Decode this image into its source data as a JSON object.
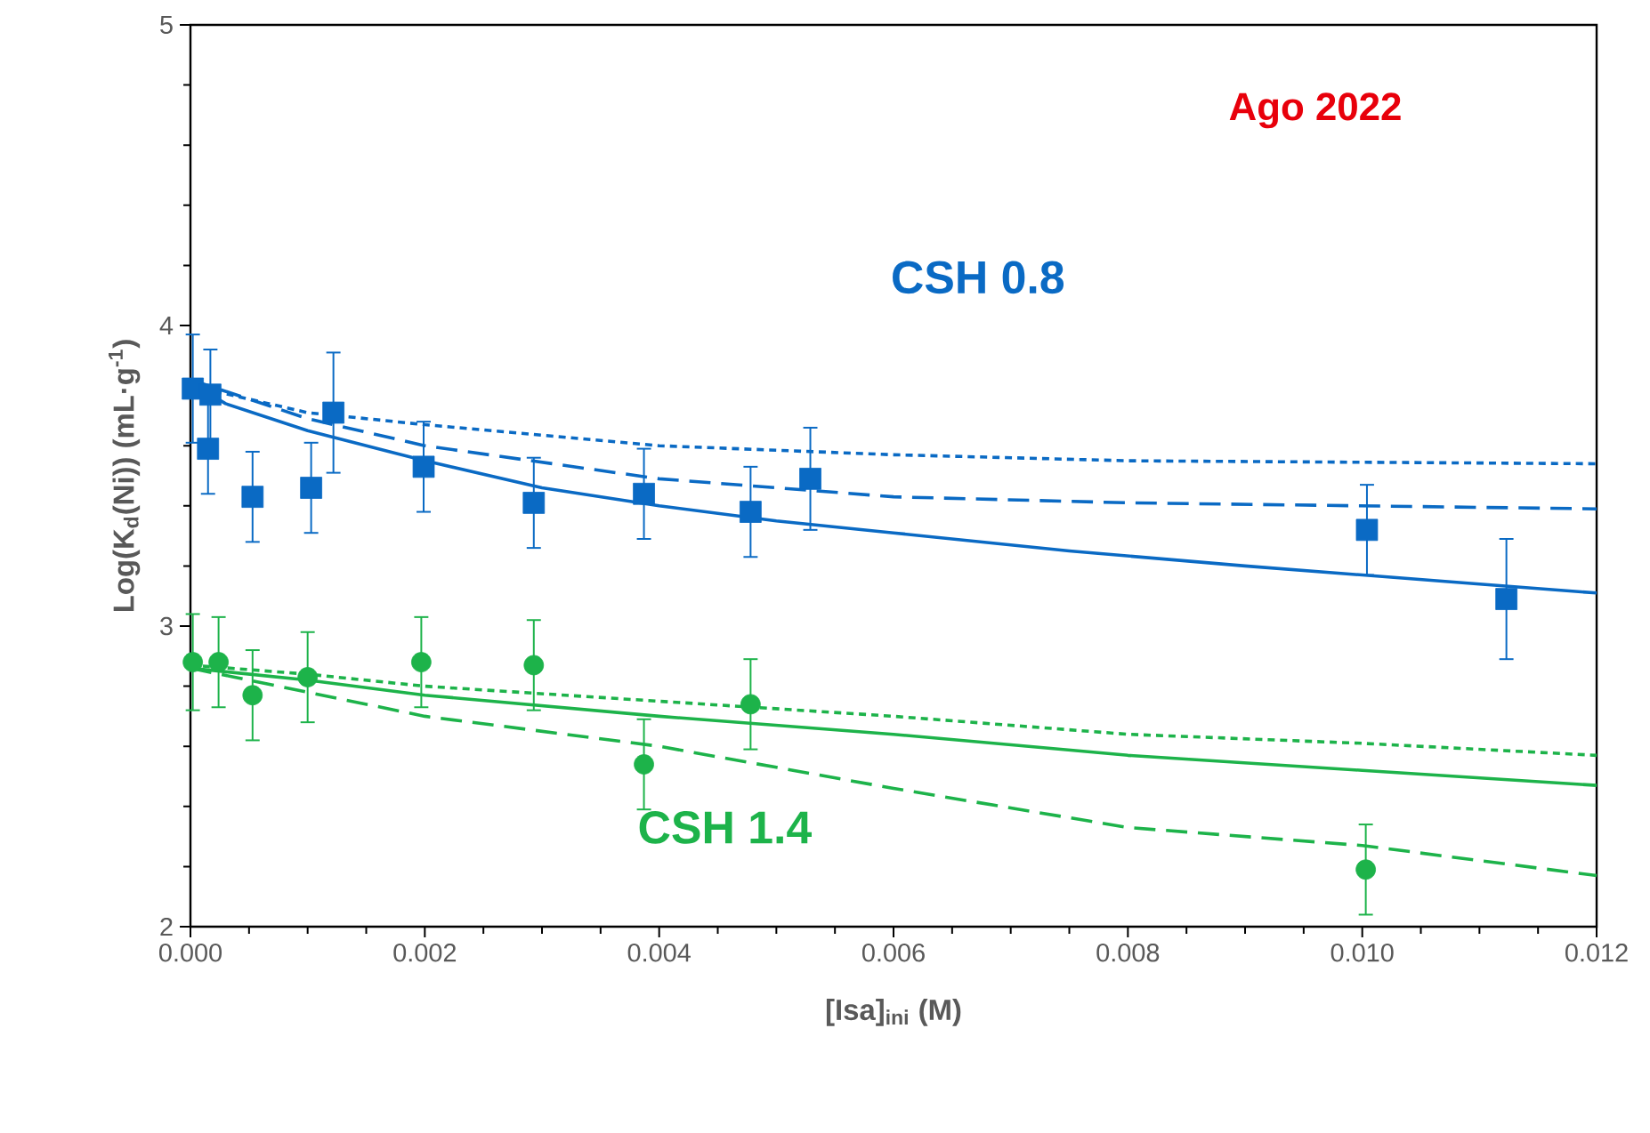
{
  "chart_data": {
    "type": "scatter",
    "xlabel": "[Isa]$_{ini}$ (M)",
    "ylabel": "Log(K$_{d}$(Ni)) (mL·g$^{-1}$)",
    "annotations": [
      "Ago 2022"
    ],
    "xlim": [
      0,
      0.012
    ],
    "ylim": [
      2,
      5
    ],
    "xticks": [
      {
        "value": 0,
        "label": "0.000"
      },
      {
        "value": 0.002,
        "label": "0.002"
      },
      {
        "value": 0.004,
        "label": "0.004"
      },
      {
        "value": 0.006,
        "label": "0.006"
      },
      {
        "value": 0.008,
        "label": "0.008"
      },
      {
        "value": 0.01,
        "label": "0.010"
      },
      {
        "value": 0.012,
        "label": "0.012"
      }
    ],
    "yticks": [
      2,
      3,
      4,
      5
    ],
    "series": [
      {
        "name": "CSH 0.8",
        "type": "scatter",
        "marker": "square",
        "color": "#0a6ac4",
        "x": [
          2e-05,
          0.00017,
          0.00015,
          0.00053,
          0.00103,
          0.00122,
          0.00199,
          0.00293,
          0.00387,
          0.00478,
          0.00529,
          0.01004,
          0.01123
        ],
        "values": [
          3.79,
          3.77,
          3.59,
          3.43,
          3.46,
          3.71,
          3.53,
          3.41,
          3.44,
          3.38,
          3.49,
          3.32,
          3.09
        ],
        "errors": [
          0.18,
          0.15,
          0.15,
          0.15,
          0.15,
          0.2,
          0.15,
          0.15,
          0.15,
          0.15,
          0.17,
          0.15,
          0.2
        ]
      },
      {
        "name": "CSH 1.4",
        "type": "scatter",
        "marker": "circle",
        "color": "#1db34a",
        "x": [
          2e-05,
          0.00024,
          0.00053,
          0.001,
          0.00197,
          0.00293,
          0.00387,
          0.00478,
          0.01003
        ],
        "values": [
          2.88,
          2.88,
          2.77,
          2.83,
          2.88,
          2.87,
          2.54,
          2.74,
          2.19
        ],
        "errors": [
          0.16,
          0.15,
          0.15,
          0.15,
          0.15,
          0.15,
          0.15,
          0.15,
          0.15
        ]
      },
      {
        "type": "line",
        "line_style": "solid",
        "color": "#0a6ac4",
        "x": [
          0,
          0.0003,
          0.001,
          0.002,
          0.003,
          0.004,
          0.005,
          0.006,
          0.0075,
          0.009,
          0.01,
          0.011,
          0.012
        ],
        "values": [
          3.81,
          3.74,
          3.65,
          3.55,
          3.46,
          3.4,
          3.35,
          3.31,
          3.25,
          3.2,
          3.17,
          3.14,
          3.11
        ]
      },
      {
        "type": "line",
        "line_style": "dashed",
        "color": "#0a6ac4",
        "x": [
          0,
          0.001,
          0.002,
          0.004,
          0.006,
          0.008,
          0.012
        ],
        "values": [
          3.82,
          3.69,
          3.6,
          3.49,
          3.43,
          3.41,
          3.39
        ]
      },
      {
        "type": "line",
        "line_style": "dotted",
        "color": "#0a6ac4",
        "x": [
          0,
          0.001,
          0.002,
          0.004,
          0.006,
          0.008,
          0.012
        ],
        "values": [
          3.8,
          3.71,
          3.67,
          3.6,
          3.57,
          3.55,
          3.54
        ]
      },
      {
        "type": "line",
        "line_style": "solid",
        "color": "#1db34a",
        "x": [
          0,
          0.001,
          0.002,
          0.004,
          0.006,
          0.008,
          0.01,
          0.012
        ],
        "values": [
          2.86,
          2.82,
          2.77,
          2.7,
          2.64,
          2.57,
          2.52,
          2.47
        ]
      },
      {
        "type": "line",
        "line_style": "dashed",
        "color": "#1db34a",
        "x": [
          0,
          0.001,
          0.002,
          0.004,
          0.006,
          0.008,
          0.01,
          0.012
        ],
        "values": [
          2.86,
          2.78,
          2.7,
          2.6,
          2.46,
          2.33,
          2.27,
          2.17
        ]
      },
      {
        "type": "line",
        "line_style": "dotted",
        "color": "#1db34a",
        "x": [
          0,
          0.001,
          0.002,
          0.004,
          0.006,
          0.008,
          0.01,
          0.012
        ],
        "values": [
          2.87,
          2.84,
          2.8,
          2.75,
          2.7,
          2.64,
          2.61,
          2.57
        ]
      }
    ]
  }
}
